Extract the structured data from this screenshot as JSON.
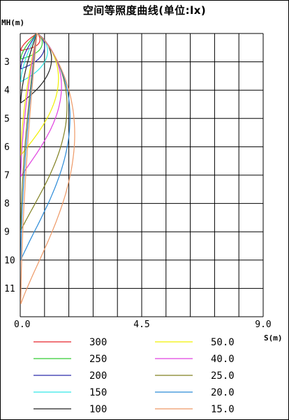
{
  "chart_data": {
    "type": "line",
    "title": "空间等照度曲线(单位:lx)",
    "ylabel": "MH(m)",
    "xlabel": "S(m)",
    "x_ticks": [
      "0.0",
      "4.5",
      "9.0"
    ],
    "x_tick_values": [
      0,
      4.5,
      9.0
    ],
    "y_ticks": [
      "3",
      "4",
      "5",
      "6",
      "7",
      "8",
      "9",
      "10",
      "11"
    ],
    "y_tick_values": [
      3,
      4,
      5,
      6,
      7,
      8,
      9,
      10,
      11
    ],
    "xlim": [
      0,
      9.0
    ],
    "ylim": [
      2,
      12
    ],
    "grid": true,
    "legend_position": "bottom",
    "series": [
      {
        "name": "300",
        "color": "#e8242a",
        "max_depth": 2.6,
        "max_width": 0.45
      },
      {
        "name": "250",
        "color": "#33cc33",
        "max_depth": 2.9,
        "max_width": 0.55
      },
      {
        "name": "200",
        "color": "#2b2baa",
        "max_depth": 3.25,
        "max_width": 0.65
      },
      {
        "name": "150",
        "color": "#33e6e6",
        "max_depth": 3.7,
        "max_width": 0.78
      },
      {
        "name": "100",
        "color": "#222222",
        "max_depth": 4.45,
        "max_width": 0.95
      },
      {
        "name": "50.0",
        "color": "#f0f000",
        "max_depth": 6.3,
        "max_width": 1.25
      },
      {
        "name": "40.0",
        "color": "#e040e0",
        "max_depth": 7.05,
        "max_width": 1.38
      },
      {
        "name": "25.0",
        "color": "#808020",
        "max_depth": 8.95,
        "max_width": 1.62
      },
      {
        "name": "20.0",
        "color": "#2a8ad8",
        "max_depth": 10.0,
        "max_width": 1.75
      },
      {
        "name": "15.0",
        "color": "#ee9966",
        "max_depth": 11.55,
        "max_width": 1.95
      }
    ]
  }
}
